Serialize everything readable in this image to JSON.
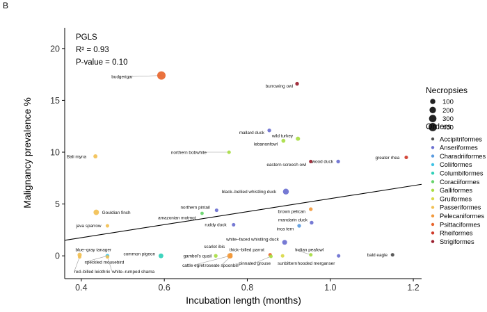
{
  "panel_label": "B",
  "chart_data": {
    "type": "scatter",
    "xlabel": "Incubation length (months)",
    "ylabel": "Malignancy prevalence %",
    "xlim": [
      0.36,
      1.22
    ],
    "ylim": [
      -2.2,
      22.0
    ],
    "xticks": [
      0.4,
      0.6,
      0.8,
      1.0,
      1.2
    ],
    "xtick_labels": [
      "0.4",
      "0.6",
      "0.8",
      "1.0",
      "1.2"
    ],
    "yticks": [
      0,
      5,
      10,
      15,
      20
    ],
    "ytick_labels": [
      "0",
      "5",
      "10",
      "15",
      "20"
    ],
    "grid": false,
    "stats": {
      "method": "PGLS",
      "r2": "R² = 0.93",
      "p_value": "P-value = 0.10"
    },
    "regression": {
      "x": [
        0.36,
        1.22
      ],
      "y": [
        1.5,
        6.9
      ]
    },
    "size_legend": {
      "title": "Necropsies",
      "values": [
        100,
        200,
        300,
        400
      ],
      "labels": [
        "100",
        "200",
        "300",
        "400"
      ]
    },
    "color_legend": {
      "title": "Orders",
      "entries": [
        {
          "name": "Accipitriformes",
          "color": "#4d4d4d"
        },
        {
          "name": "Anseriformes",
          "color": "#6a6fd0"
        },
        {
          "name": "Charadriiformes",
          "color": "#5a9be0"
        },
        {
          "name": "Coliiformes",
          "color": "#3fc3e6"
        },
        {
          "name": "Columbiformes",
          "color": "#2fd0b8"
        },
        {
          "name": "Coraciiformes",
          "color": "#66d46a"
        },
        {
          "name": "Galliformes",
          "color": "#a8dd44"
        },
        {
          "name": "Gruiformes",
          "color": "#d9d948"
        },
        {
          "name": "Passeriformes",
          "color": "#f2c054"
        },
        {
          "name": "Pelecaniformes",
          "color": "#f29a3d"
        },
        {
          "name": "Psittaciformes",
          "color": "#e8662e"
        },
        {
          "name": "Rheiformes",
          "color": "#cf3a2a"
        },
        {
          "name": "Strigiformes",
          "color": "#9a1e2e"
        }
      ]
    },
    "points": [
      {
        "label": "budgerigar",
        "x": 0.593,
        "y": 17.4,
        "order": "Psittaciformes",
        "necropsies": 420,
        "tx": 0.524,
        "ty": 17.3,
        "anchor": "end"
      },
      {
        "label": "burrowing owl",
        "x": 0.92,
        "y": 16.6,
        "order": "Strigiformes",
        "necropsies": 25,
        "tx": 0.91,
        "ty": 16.4,
        "anchor": "end"
      },
      {
        "label": "mallard duck",
        "x": 0.853,
        "y": 12.1,
        "order": "Anseriformes",
        "necropsies": 25,
        "tx": 0.841,
        "ty": 11.9,
        "anchor": "end"
      },
      {
        "label": "wild turkey",
        "x": 0.922,
        "y": 11.3,
        "order": "Galliformes",
        "necropsies": 45,
        "tx": 0.91,
        "ty": 11.6,
        "anchor": "end"
      },
      {
        "label": "lebanonfowl",
        "x": 0.887,
        "y": 11.1,
        "order": "Galliformes",
        "necropsies": 35,
        "tx": 0.873,
        "ty": 10.8,
        "anchor": "end"
      },
      {
        "label": "northern bobwhite",
        "x": 0.756,
        "y": 10.0,
        "order": "Galliformes",
        "necropsies": 20,
        "tx": 0.702,
        "ty": 10.0,
        "anchor": "end"
      },
      {
        "label": "Bali myna",
        "x": 0.434,
        "y": 9.6,
        "order": "Passeriformes",
        "necropsies": 40,
        "tx": 0.412,
        "ty": 9.6,
        "anchor": "end"
      },
      {
        "label": "greater rhea",
        "x": 1.183,
        "y": 9.5,
        "order": "Rheiformes",
        "necropsies": 20,
        "tx": 1.167,
        "ty": 9.5,
        "anchor": "end"
      },
      {
        "label": "wood duck",
        "x": 1.019,
        "y": 9.1,
        "order": "Anseriformes",
        "necropsies": 25,
        "tx": 1.007,
        "ty": 9.1,
        "anchor": "end"
      },
      {
        "label": "eastern screech owl",
        "x": 0.953,
        "y": 9.1,
        "order": "Strigiformes",
        "necropsies": 20,
        "tx": 0.942,
        "ty": 8.8,
        "anchor": "end"
      },
      {
        "label": "black–bellied whistling duck",
        "x": 0.893,
        "y": 6.2,
        "order": "Anseriformes",
        "necropsies": 150,
        "tx": 0.87,
        "ty": 6.2,
        "anchor": "end"
      },
      {
        "label": "Gouldian finch",
        "x": 0.436,
        "y": 4.2,
        "order": "Passeriformes",
        "necropsies": 120,
        "tx": 0.45,
        "ty": 4.2,
        "anchor": "start"
      },
      {
        "label": "northern pintail",
        "x": 0.726,
        "y": 4.4,
        "order": "Anseriformes",
        "necropsies": 20,
        "tx": 0.71,
        "ty": 4.7,
        "anchor": "end"
      },
      {
        "label": "amazonian motmot",
        "x": 0.691,
        "y": 4.1,
        "order": "Coraciiformes",
        "necropsies": 15,
        "tx": 0.676,
        "ty": 3.7,
        "anchor": "end"
      },
      {
        "label": "brown pelican",
        "x": 0.953,
        "y": 4.5,
        "order": "Pelecaniformes",
        "necropsies": 25,
        "tx": 0.94,
        "ty": 4.3,
        "anchor": "end"
      },
      {
        "label": "java sparrow",
        "x": 0.463,
        "y": 2.9,
        "order": "Passeriformes",
        "necropsies": 20,
        "tx": 0.448,
        "ty": 2.9,
        "anchor": "end"
      },
      {
        "label": "ruddy duck",
        "x": 0.767,
        "y": 3.0,
        "order": "Anseriformes",
        "necropsies": 20,
        "tx": 0.75,
        "ty": 3.0,
        "anchor": "end"
      },
      {
        "label": "mandarin duck",
        "x": 0.955,
        "y": 3.2,
        "order": "Anseriformes",
        "necropsies": 25,
        "tx": 0.945,
        "ty": 3.5,
        "anchor": "end"
      },
      {
        "label": "inca tern",
        "x": 0.925,
        "y": 2.9,
        "order": "Charadriiformes",
        "necropsies": 25,
        "tx": 0.912,
        "ty": 2.6,
        "anchor": "end"
      },
      {
        "label": "white–faced whistling duck",
        "x": 0.89,
        "y": 1.3,
        "order": "Anseriformes",
        "necropsies": 80,
        "tx": 0.876,
        "ty": 1.6,
        "anchor": "end"
      },
      {
        "label": "blue–gray tanager",
        "x": 0.396,
        "y": 0.1,
        "order": "Passeriformes",
        "necropsies": 45,
        "tx": 0.386,
        "ty": 0.6,
        "anchor": "start"
      },
      {
        "label": "speckled mousebird",
        "x": 0.463,
        "y": 0.0,
        "order": "Coliiformes",
        "necropsies": 30,
        "tx": 0.408,
        "ty": -0.6,
        "anchor": "start"
      },
      {
        "label": "red–billed leiothrix",
        "x": 0.396,
        "y": -0.1,
        "order": "Passeriformes",
        "necropsies": 20,
        "tx": 0.383,
        "ty": -1.5,
        "anchor": "start"
      },
      {
        "label": "white–rumped shama",
        "x": 0.463,
        "y": -0.1,
        "order": "Passeriformes",
        "necropsies": 20,
        "tx": 0.474,
        "ty": -1.5,
        "anchor": "start"
      },
      {
        "label": "common pigeon",
        "x": 0.592,
        "y": 0.0,
        "order": "Columbiformes",
        "necropsies": 70,
        "tx": 0.578,
        "ty": 0.2,
        "anchor": "end"
      },
      {
        "label": "scarlet ibis",
        "x": 0.76,
        "y": 0.1,
        "order": "Pelecaniformes",
        "necropsies": 25,
        "tx": 0.746,
        "ty": 0.9,
        "anchor": "end"
      },
      {
        "label": "gambel's quail",
        "x": 0.724,
        "y": 0.0,
        "order": "Galliformes",
        "necropsies": 25,
        "tx": 0.714,
        "ty": 0.0,
        "anchor": "end"
      },
      {
        "label": "cattle egret",
        "x": 0.758,
        "y": 0.0,
        "order": "Pelecaniformes",
        "necropsies": 110,
        "tx": 0.67,
        "ty": -0.9,
        "anchor": "middle"
      },
      {
        "label": "roseate spoonbill",
        "x": 0.76,
        "y": -0.05,
        "order": "Pelecaniformes",
        "necropsies": 30,
        "tx": 0.738,
        "ty": -0.9,
        "anchor": "middle"
      },
      {
        "label": "thick–billed parrot",
        "x": 0.855,
        "y": 0.1,
        "order": "Psittaciformes",
        "necropsies": 20,
        "tx": 0.841,
        "ty": 0.6,
        "anchor": "end"
      },
      {
        "label": "pinnated grouse",
        "x": 0.857,
        "y": -0.05,
        "order": "Galliformes",
        "necropsies": 20,
        "tx": 0.818,
        "ty": -0.7,
        "anchor": "middle"
      },
      {
        "label": "sunbittern",
        "x": 0.885,
        "y": 0.0,
        "order": "Gruiformes",
        "necropsies": 20,
        "tx": 0.873,
        "ty": -0.7,
        "anchor": "start"
      },
      {
        "label": "Indian peafowl",
        "x": 0.953,
        "y": 0.1,
        "order": "Galliformes",
        "necropsies": 20,
        "tx": 0.915,
        "ty": 0.6,
        "anchor": "start"
      },
      {
        "label": "hooded merganser",
        "x": 1.02,
        "y": 0.0,
        "order": "Anseriformes",
        "necropsies": 20,
        "tx": 1.011,
        "ty": -0.7,
        "anchor": "end"
      },
      {
        "label": "bald eagle",
        "x": 1.15,
        "y": 0.1,
        "order": "Accipitriformes",
        "necropsies": 20,
        "tx": 1.138,
        "ty": 0.1,
        "anchor": "end"
      }
    ]
  }
}
